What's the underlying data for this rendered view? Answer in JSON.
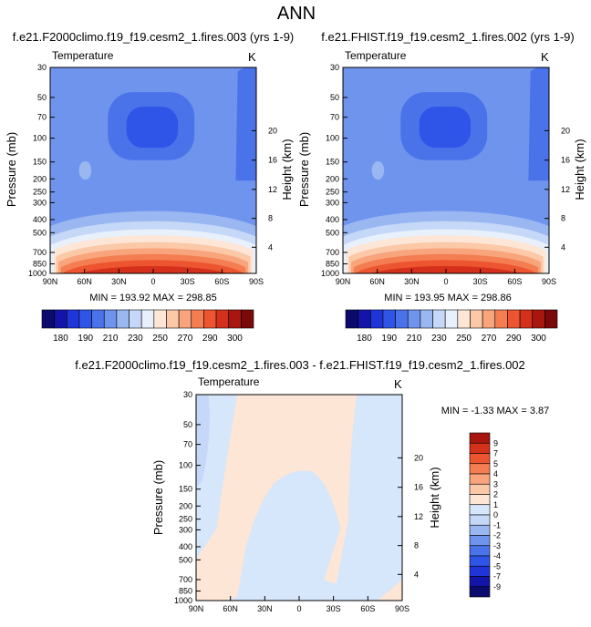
{
  "title": "ANN",
  "colors": {
    "temperature_scale": [
      "#0b0b6e",
      "#1414a8",
      "#1f35d8",
      "#2f55e8",
      "#4a73ea",
      "#6f94ee",
      "#9ab7f2",
      "#c5d8f8",
      "#e8f0fb",
      "#fde6d6",
      "#fbc8a8",
      "#f8a47c",
      "#f47d52",
      "#ec5530",
      "#d4301b",
      "#a8160f",
      "#7a0a0a"
    ],
    "diff_scale": [
      "#0b0b6e",
      "#1414a8",
      "#1f35d8",
      "#2f55e8",
      "#4a73ea",
      "#6f94ee",
      "#9ab7f2",
      "#c5d8f8",
      "#d6e6fb",
      "#fde6d6",
      "#fbc8a8",
      "#f8a47c",
      "#f47d52",
      "#ec5530",
      "#d4301b",
      "#a8160f"
    ]
  },
  "chart_data": [
    {
      "type": "heatmap",
      "title": "f.e21.F2000climo.f19_f19.cesm2_1.fires.003 (yrs 1-9)",
      "subtitle_left": "Temperature",
      "subtitle_right": "K",
      "xlabel": "",
      "ylabel": "Pressure (mb)",
      "ylabel_right": "Height (km)",
      "x_ticks": [
        "90N",
        "60N",
        "30N",
        "0",
        "30S",
        "60S",
        "90S"
      ],
      "y_ticks": [
        "30",
        "50",
        "70",
        "100",
        "150",
        "200",
        "250",
        "300",
        "400",
        "500",
        "700",
        "850",
        "1000"
      ],
      "y_right_ticks": [
        "20",
        "16",
        "12",
        "8",
        "4"
      ],
      "stats": "MIN = 193.92  MAX = 298.85",
      "colorbar_labels": [
        "180",
        "190",
        "210",
        "230",
        "250",
        "270",
        "290",
        "300"
      ]
    },
    {
      "type": "heatmap",
      "title": "f.e21.FHIST.f19_f19.cesm2_1.fires.002 (yrs 1-9)",
      "subtitle_left": "Temperature",
      "subtitle_right": "K",
      "xlabel": "",
      "ylabel": "Pressure (mb)",
      "ylabel_right": "Height (km)",
      "x_ticks": [
        "90N",
        "60N",
        "30N",
        "0",
        "30S",
        "60S",
        "90S"
      ],
      "y_ticks": [
        "30",
        "50",
        "70",
        "100",
        "150",
        "200",
        "250",
        "300",
        "400",
        "500",
        "700",
        "850",
        "1000"
      ],
      "y_right_ticks": [
        "20",
        "16",
        "12",
        "8",
        "4"
      ],
      "stats": "MIN = 193.95  MAX = 298.86",
      "colorbar_labels": [
        "180",
        "190",
        "210",
        "230",
        "250",
        "270",
        "290",
        "300"
      ]
    },
    {
      "type": "heatmap",
      "title": "f.e21.F2000climo.f19_f19.cesm2_1.fires.003 - f.e21.FHIST.f19_f19.cesm2_1.fires.002",
      "subtitle_left": "Temperature",
      "subtitle_right": "K",
      "xlabel": "",
      "ylabel": "Pressure (mb)",
      "ylabel_right": "Height (km)",
      "x_ticks": [
        "90N",
        "60N",
        "30N",
        "0",
        "30S",
        "60S",
        "90S"
      ],
      "y_ticks": [
        "30",
        "50",
        "70",
        "100",
        "150",
        "200",
        "250",
        "300",
        "400",
        "500",
        "700",
        "850",
        "1000"
      ],
      "y_right_ticks": [
        "20",
        "16",
        "12",
        "8",
        "4"
      ],
      "stats": "MIN =  -1.33  MAX =   3.87",
      "colorbar_labels": [
        "9",
        "7",
        "5",
        "4",
        "3",
        "2",
        "1",
        "0",
        "-1",
        "-2",
        "-3",
        "-4",
        "-5",
        "-7",
        "-9"
      ]
    }
  ]
}
